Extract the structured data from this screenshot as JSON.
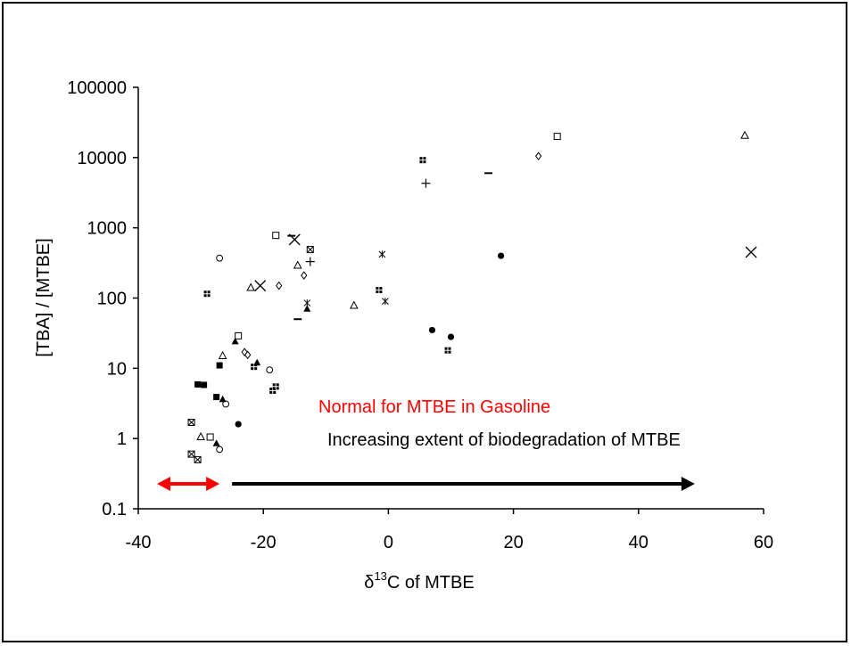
{
  "chart_data": {
    "type": "scatter",
    "title": "",
    "xlabel": "C of MTBE",
    "xlabel_prefix": "δ",
    "xlabel_superscript": "13",
    "ylabel": "[TBA] / [MTBE]",
    "xlim": [
      -40,
      60
    ],
    "ylim": [
      0.1,
      100000
    ],
    "y_scale": "log",
    "grid": false,
    "legend": "none",
    "x_tick_labels": [
      "-40",
      "-20",
      "0",
      "20",
      "40",
      "60"
    ],
    "y_tick_labels": [
      "0.1",
      "1",
      "10",
      "100",
      "1000",
      "10000",
      "100000"
    ],
    "annotations": [
      {
        "text": "Normal for MTBE in Gasoline",
        "color": "#ff0000"
      },
      {
        "text": "Increasing extent of biodegradation of MTBE",
        "color": "#000000"
      }
    ],
    "arrows": [
      {
        "name": "normal-range-arrow",
        "x_from": -37,
        "x_to": -27,
        "style": "double",
        "color": "#ff0000"
      },
      {
        "name": "biodegradation-arrow",
        "x_from": -25,
        "x_to": 49,
        "style": "single",
        "color": "#000000"
      }
    ],
    "series": [
      {
        "marker": "circle-filled",
        "points": [
          [
            -24,
            1.6
          ],
          [
            7,
            35
          ],
          [
            10,
            28
          ],
          [
            18,
            400
          ]
        ]
      },
      {
        "marker": "circle-open",
        "points": [
          [
            -27,
            370
          ],
          [
            -19,
            9.5
          ],
          [
            -26,
            3.1
          ],
          [
            -27,
            0.7
          ]
        ]
      },
      {
        "marker": "square-filled",
        "points": [
          [
            -30.5,
            5.9
          ],
          [
            -29.5,
            5.8
          ],
          [
            -27,
            11
          ],
          [
            -27.5,
            3.9
          ]
        ]
      },
      {
        "marker": "square-open",
        "points": [
          [
            -18,
            780
          ],
          [
            -24,
            29
          ],
          [
            -28.5,
            1.05
          ],
          [
            27,
            20000
          ]
        ]
      },
      {
        "marker": "square-dotted",
        "points": [
          [
            -29,
            115
          ],
          [
            -21.5,
            10.5
          ],
          [
            -18.5,
            4.8
          ],
          [
            -18,
            5.5
          ],
          [
            -1.5,
            130
          ],
          [
            5.5,
            9200
          ],
          [
            9.5,
            18
          ]
        ]
      },
      {
        "marker": "square-crossed",
        "points": [
          [
            -31.5,
            1.7
          ],
          [
            -31.5,
            0.6
          ],
          [
            -30.5,
            0.5
          ],
          [
            -12.5,
            490
          ]
        ]
      },
      {
        "marker": "triangle-filled",
        "points": [
          [
            -24.5,
            24
          ],
          [
            -26.5,
            3.6
          ],
          [
            -27.5,
            0.85
          ],
          [
            -21,
            12
          ],
          [
            -13,
            70
          ]
        ]
      },
      {
        "marker": "triangle-open",
        "points": [
          [
            -26.5,
            15
          ],
          [
            -22,
            140
          ],
          [
            -14.5,
            290
          ],
          [
            -5.5,
            78
          ],
          [
            -30,
            1.05
          ],
          [
            57,
            20500
          ]
        ]
      },
      {
        "marker": "diamond-open",
        "points": [
          [
            -23,
            17
          ],
          [
            -22.5,
            15.5
          ],
          [
            -17.5,
            150
          ],
          [
            -13.5,
            210
          ],
          [
            24,
            10500
          ]
        ]
      },
      {
        "marker": "cross",
        "points": [
          [
            -20.5,
            150
          ],
          [
            -15,
            680
          ],
          [
            58,
            450
          ]
        ]
      },
      {
        "marker": "plus",
        "points": [
          [
            -12.5,
            330
          ],
          [
            6,
            4300
          ]
        ]
      },
      {
        "marker": "asterisk",
        "points": [
          [
            -13,
            85
          ],
          [
            -1,
            420
          ],
          [
            -0.5,
            90
          ]
        ]
      },
      {
        "marker": "dash",
        "points": [
          [
            -15.5,
            770
          ],
          [
            -14.5,
            50
          ],
          [
            16,
            6000
          ]
        ]
      }
    ]
  }
}
